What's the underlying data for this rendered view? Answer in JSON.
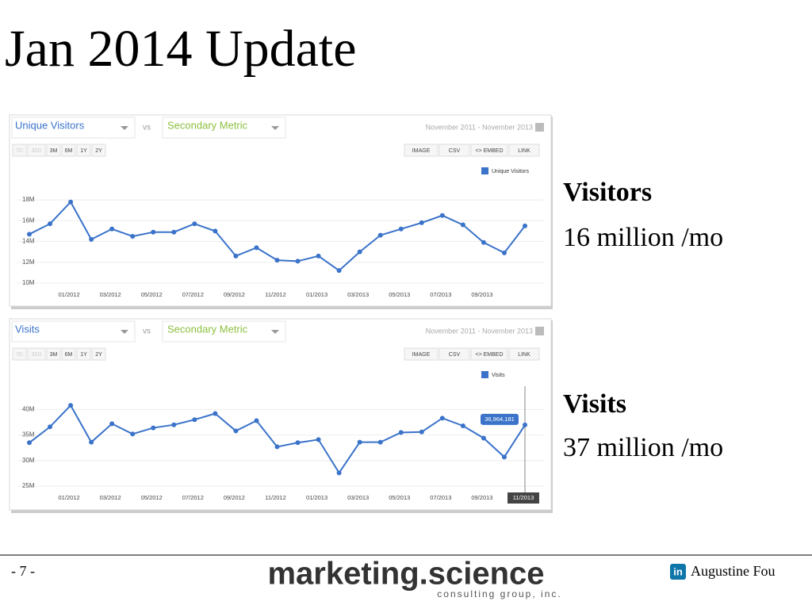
{
  "title": "Jan 2014 Update",
  "chart_data": [
    {
      "type": "line",
      "metric": "Unique Visitors",
      "compare_label": "vs",
      "secondary_metric": "Secondary Metric",
      "date_range": "November 2011 - November 2013",
      "range_buttons": [
        "7D",
        "30D",
        "3M",
        "6M",
        "1Y",
        "2Y"
      ],
      "export_buttons": [
        "IMAGE",
        "CSV",
        "<> EMBED",
        "LINK"
      ],
      "categories": [
        null,
        null,
        "01/2012",
        null,
        "03/2012",
        null,
        "05/2012",
        null,
        "07/2012",
        null,
        "09/2012",
        null,
        "11/2012",
        null,
        "01/2013",
        null,
        "03/2013",
        null,
        "05/2013",
        null,
        "07/2013",
        null,
        "09/2013",
        null,
        null
      ],
      "series": [
        {
          "name": "Unique Visitors",
          "color": "#3a73c9",
          "values": [
            14.7,
            15.7,
            17.8,
            14.2,
            15.2,
            14.5,
            14.9,
            14.9,
            15.7,
            15.0,
            12.6,
            13.4,
            12.2,
            12.1,
            12.6,
            11.2,
            13.0,
            14.6,
            15.2,
            15.8,
            16.5,
            15.6,
            13.9,
            12.9,
            15.5
          ]
        }
      ],
      "ylim": [
        9,
        19
      ],
      "yticks": [
        {
          "value": 10,
          "label": "10M"
        },
        {
          "value": 12,
          "label": "12M"
        },
        {
          "value": 14,
          "label": "14M"
        },
        {
          "value": 16,
          "label": "16M"
        },
        {
          "value": 18,
          "label": "18M"
        }
      ],
      "grid": true
    },
    {
      "type": "line",
      "metric": "Visits",
      "compare_label": "vs",
      "secondary_metric": "Secondary Metric",
      "date_range": "November 2011 - November 2013",
      "range_buttons": [
        "7D",
        "30D",
        "3M",
        "6M",
        "1Y",
        "2Y"
      ],
      "export_buttons": [
        "IMAGE",
        "CSV",
        "<> EMBED",
        "LINK"
      ],
      "categories": [
        null,
        null,
        "01/2012",
        null,
        "03/2012",
        null,
        "05/2012",
        null,
        "07/2012",
        null,
        "09/2012",
        null,
        "11/2012",
        null,
        "01/2013",
        null,
        "03/2013",
        null,
        "05/2013",
        null,
        "07/2013",
        null,
        "09/2013",
        null,
        "11/2013"
      ],
      "series": [
        {
          "name": "Visits",
          "color": "#3a73c9",
          "values": [
            33.5,
            36.6,
            40.8,
            33.6,
            37.2,
            35.2,
            36.4,
            37.0,
            38.0,
            39.2,
            35.8,
            37.8,
            32.7,
            33.5,
            34.1,
            27.6,
            33.6,
            33.6,
            35.5,
            35.6,
            38.3,
            36.8,
            34.4,
            30.7,
            36.964181
          ],
          "value_labels": [
            null,
            null,
            null,
            null,
            null,
            null,
            null,
            null,
            null,
            null,
            null,
            null,
            null,
            null,
            null,
            null,
            null,
            null,
            null,
            null,
            null,
            null,
            null,
            null,
            "36,964,181"
          ]
        }
      ],
      "ylim": [
        23,
        43
      ],
      "yticks": [
        {
          "value": 25,
          "label": "25M"
        },
        {
          "value": 30,
          "label": "30M"
        },
        {
          "value": 35,
          "label": "35M"
        },
        {
          "value": 40,
          "label": "40M"
        }
      ],
      "grid": true
    }
  ],
  "side_notes": [
    {
      "heading": "Visitors",
      "text": "16 million /mo"
    },
    {
      "heading": "Visits",
      "text": "37 million /mo"
    }
  ],
  "footer": {
    "page": "- 7 -",
    "brand": "marketing.science",
    "brand_sub": "consulting group, inc.",
    "icon": "in",
    "author": "Augustine Fou"
  }
}
